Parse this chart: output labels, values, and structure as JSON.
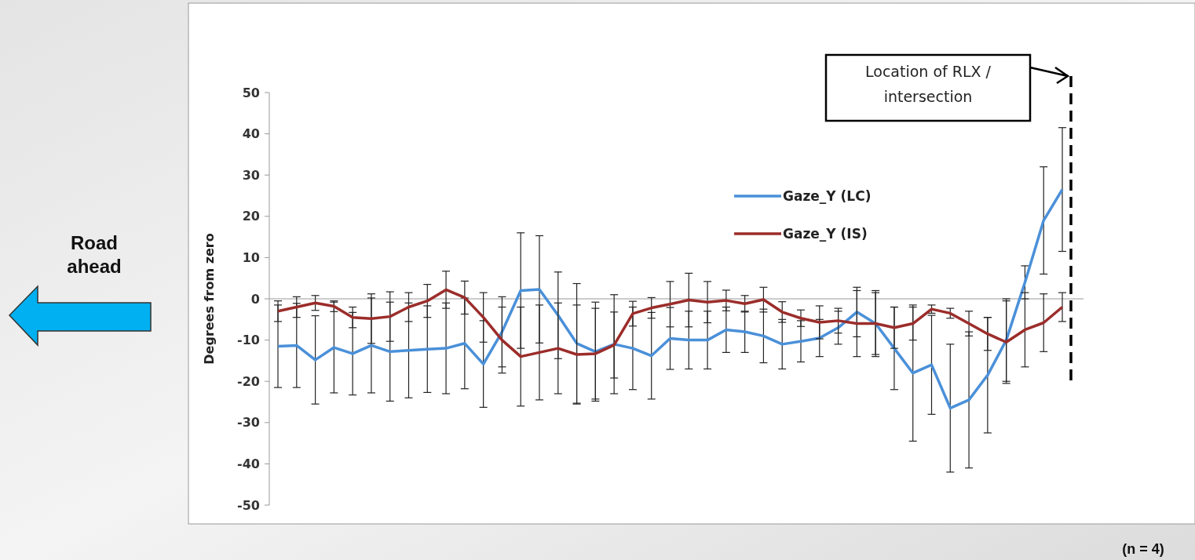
{
  "chart_data": {
    "type": "line",
    "ylabel": "Degrees from zero",
    "categories": [
      null,
      null,
      null,
      null,
      null,
      null,
      null,
      null,
      null,
      null,
      null,
      null,
      null,
      null,
      null,
      null,
      null,
      null,
      null,
      null,
      null,
      null,
      null,
      null,
      null,
      null,
      null,
      null,
      null,
      null,
      null,
      null,
      null,
      null,
      null,
      null,
      null,
      null,
      null,
      null,
      null,
      null,
      null
    ],
    "ylim": [
      -50,
      50
    ],
    "yticks": [
      -50,
      -40,
      -30,
      -20,
      -10,
      0,
      10,
      20,
      30,
      40,
      50
    ],
    "tick_labels": "y",
    "grid": false,
    "legend": "right",
    "marker": "none",
    "line_style": "solid",
    "series": [
      {
        "name": "Gaze_Y (LC)",
        "color": "#4a90d9",
        "values": [
          -11.5,
          -11.3,
          -14.8,
          -11.8,
          -13.3,
          -11.3,
          -12.8,
          -12.5,
          -12.2,
          -12,
          -10.8,
          -15.8,
          -8,
          2,
          2.3,
          -4,
          -10.8,
          -12.8,
          -11,
          -12,
          -13.8,
          -9.6,
          -10,
          -10,
          -7.5,
          -8,
          -9,
          -11,
          -10.3,
          -9.5,
          -7,
          -3.2,
          -6,
          -12,
          -18,
          -16,
          -26.5,
          -24.5,
          -18.5,
          -10,
          4,
          19,
          26.5
        ],
        "errors": [
          10,
          10.2,
          10.7,
          11,
          10,
          11.5,
          12,
          11.5,
          10.5,
          11,
          11,
          10.5,
          8.5,
          14,
          13,
          10.5,
          14.5,
          12,
          12,
          10,
          10.5,
          7.5,
          7,
          7,
          5.5,
          5,
          6.5,
          6,
          5,
          4.5,
          4,
          6,
          7.5,
          10,
          16.5,
          12,
          15.5,
          16.5,
          14,
          10,
          4,
          13,
          15
        ]
      },
      {
        "name": "Gaze_Y (IS)",
        "color": "#9b2d2a",
        "values": [
          -3,
          -2,
          -1,
          -1.8,
          -4.5,
          -4.8,
          -4.3,
          -2,
          -0.5,
          2.2,
          0.3,
          -4.5,
          -10,
          -14,
          -13,
          -12,
          -13.5,
          -13.3,
          -11.2,
          -3.6,
          -2.2,
          -1.3,
          -0.3,
          -0.8,
          -0.4,
          -1.2,
          -0.2,
          -3.2,
          -4.7,
          -5.7,
          -5.3,
          -6,
          -6,
          -7,
          -6,
          -2.5,
          -3.5,
          -6,
          -8.5,
          -10.5,
          -7.5,
          -5.8,
          -2
        ],
        "errors": [
          2.5,
          2.5,
          1.8,
          1.3,
          2.5,
          6,
          6,
          3.5,
          4,
          4.5,
          4,
          6,
          8,
          12,
          11.5,
          11,
          12,
          11,
          8,
          3,
          2.5,
          5.5,
          6.5,
          5,
          2.5,
          2,
          3,
          2.5,
          2,
          4,
          3,
          8,
          8,
          5,
          4,
          1,
          1.2,
          3,
          4,
          10,
          9,
          7,
          3.5
        ]
      }
    ],
    "annotations": [
      "Location of RLX / intersection",
      "Road ahead",
      "(n = 4)"
    ]
  }
}
